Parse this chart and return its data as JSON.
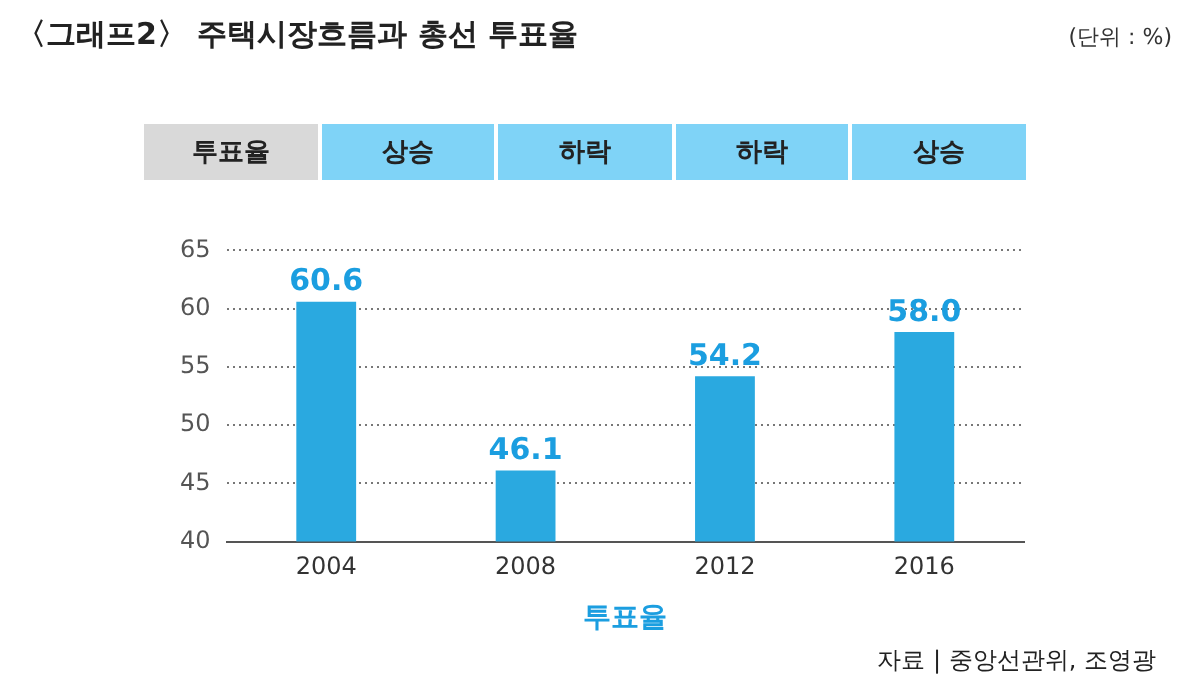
{
  "chart_data": {
    "type": "bar",
    "title": "〈그래프2〉 주택시장흐름과 총선 투표율",
    "subtitle": "(단위 : %)",
    "xlabel": "투표율",
    "categories": [
      "2004",
      "2008",
      "2012",
      "2016"
    ],
    "values": [
      60.6,
      46.1,
      54.2,
      58.0
    ],
    "color": "#2aa9e0",
    "value_labels": [
      "60.6",
      "46.1",
      "54.2",
      "58.0"
    ],
    "ylim": [
      40,
      65
    ],
    "yticks": [
      40,
      45,
      50,
      55,
      60,
      65
    ],
    "grid": "y",
    "annotations": [
      "투표율",
      "상승",
      "하락",
      "하락",
      "상승",
      "자료 | 중앙선관위, 조영광"
    ]
  }
}
